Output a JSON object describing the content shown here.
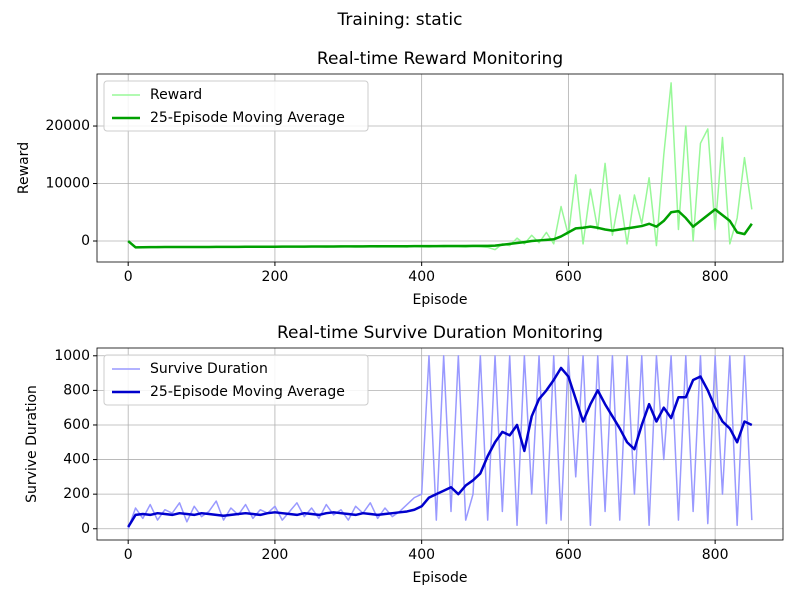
{
  "title": "Training: static",
  "chart_data": [
    {
      "type": "line",
      "title": "Real-time Reward Monitoring",
      "x_label": "Episode",
      "y_label": "Reward",
      "x": [
        0,
        10,
        20,
        30,
        40,
        50,
        60,
        70,
        80,
        90,
        100,
        110,
        120,
        130,
        140,
        150,
        160,
        170,
        180,
        190,
        200,
        210,
        220,
        230,
        240,
        250,
        260,
        270,
        280,
        290,
        300,
        310,
        320,
        330,
        340,
        350,
        360,
        370,
        380,
        390,
        400,
        410,
        420,
        430,
        440,
        450,
        460,
        470,
        480,
        490,
        500,
        510,
        520,
        530,
        540,
        550,
        560,
        570,
        580,
        590,
        600,
        610,
        620,
        630,
        640,
        650,
        660,
        670,
        680,
        690,
        700,
        710,
        720,
        730,
        740,
        750,
        760,
        770,
        780,
        790,
        800,
        810,
        820,
        830,
        840,
        850
      ],
      "series": [
        {
          "name": "Reward",
          "color": "#98f898",
          "width": 1.5,
          "values": [
            0,
            -1050,
            -1000,
            -1100,
            -980,
            -1020,
            -1050,
            -990,
            -1010,
            -1060,
            -1000,
            -1030,
            -980,
            -1040,
            -1000,
            -1020,
            -1070,
            -990,
            -1010,
            -1000,
            -1050,
            -1020,
            -980,
            -1000,
            -1040,
            -1010,
            -990,
            -1060,
            -1000,
            -1020,
            -980,
            -1030,
            -1010,
            -1000,
            -1050,
            -990,
            -1020,
            -1000,
            -1040,
            -900,
            -1000,
            -1050,
            -950,
            -1010,
            -980,
            -1000,
            -1030,
            -950,
            -990,
            -1100,
            -1500,
            -500,
            -800,
            500,
            -500,
            1000,
            -300,
            1500,
            -500,
            6000,
            1000,
            11500,
            -500,
            9000,
            2000,
            13500,
            1000,
            8000,
            -500,
            8000,
            3000,
            11000,
            -800,
            15000,
            27500,
            2000,
            20000,
            0,
            17000,
            19500,
            2000,
            18000,
            -500,
            4000,
            14500,
            5500
          ]
        },
        {
          "name": "25-Episode Moving Average",
          "color": "#00a000",
          "width": 2.5,
          "values": [
            0,
            -1100,
            -1080,
            -1070,
            -1060,
            -1050,
            -1050,
            -1040,
            -1040,
            -1030,
            -1030,
            -1030,
            -1020,
            -1020,
            -1010,
            -1010,
            -1000,
            -1000,
            -1000,
            -990,
            -990,
            -980,
            -980,
            -970,
            -970,
            -960,
            -960,
            -950,
            -950,
            -940,
            -940,
            -930,
            -930,
            -920,
            -920,
            -910,
            -910,
            -900,
            -900,
            -890,
            -890,
            -880,
            -880,
            -870,
            -870,
            -860,
            -860,
            -850,
            -850,
            -840,
            -800,
            -650,
            -500,
            -350,
            -200,
            0,
            100,
            200,
            300,
            800,
            1500,
            2200,
            2300,
            2500,
            2300,
            2000,
            1800,
            2000,
            2200,
            2400,
            2600,
            3000,
            2500,
            3500,
            5000,
            5200,
            4000,
            2500,
            3500,
            4500,
            5500,
            4500,
            3500,
            1500,
            1200,
            3000
          ]
        }
      ],
      "xlim": [
        -42.5,
        892.5
      ],
      "ylim": [
        -3650,
        29050
      ],
      "xticks": [
        0,
        200,
        400,
        600,
        800
      ],
      "yticks": [
        0,
        10000,
        20000
      ],
      "grid": true,
      "legend": "upper-left"
    },
    {
      "type": "line",
      "title": "Real-time Survive Duration Monitoring",
      "x_label": "Episode",
      "y_label": "Survive Duration",
      "x": [
        0,
        10,
        20,
        30,
        40,
        50,
        60,
        70,
        80,
        90,
        100,
        110,
        120,
        130,
        140,
        150,
        160,
        170,
        180,
        190,
        200,
        210,
        220,
        230,
        240,
        250,
        260,
        270,
        280,
        290,
        300,
        310,
        320,
        330,
        340,
        350,
        360,
        370,
        380,
        390,
        400,
        410,
        420,
        430,
        440,
        450,
        460,
        470,
        480,
        490,
        500,
        510,
        520,
        530,
        540,
        550,
        560,
        570,
        580,
        590,
        600,
        610,
        620,
        630,
        640,
        650,
        660,
        670,
        680,
        690,
        700,
        710,
        720,
        730,
        740,
        750,
        760,
        770,
        780,
        790,
        800,
        810,
        820,
        830,
        840,
        850
      ],
      "series": [
        {
          "name": "Survive Duration",
          "color": "#9999ff",
          "width": 1.5,
          "values": [
            0,
            120,
            60,
            140,
            50,
            110,
            90,
            150,
            40,
            130,
            70,
            100,
            160,
            50,
            120,
            80,
            140,
            60,
            110,
            90,
            130,
            50,
            100,
            150,
            70,
            120,
            60,
            140,
            80,
            110,
            50,
            130,
            90,
            150,
            60,
            120,
            70,
            100,
            140,
            180,
            200,
            1000,
            50,
            1000,
            100,
            1000,
            50,
            200,
            1000,
            50,
            1000,
            100,
            1000,
            20,
            1000,
            200,
            1000,
            30,
            1000,
            50,
            1000,
            300,
            1000,
            20,
            1000,
            100,
            1000,
            50,
            1000,
            200,
            1000,
            20,
            1000,
            400,
            1000,
            50,
            1000,
            100,
            1000,
            30,
            1000,
            200,
            1000,
            20,
            1000,
            50
          ]
        },
        {
          "name": "25-Episode Moving Average",
          "color": "#0000cc",
          "width": 2.5,
          "values": [
            10,
            80,
            85,
            80,
            90,
            85,
            80,
            90,
            85,
            80,
            90,
            85,
            80,
            75,
            80,
            85,
            90,
            85,
            80,
            90,
            95,
            90,
            85,
            80,
            90,
            85,
            80,
            90,
            95,
            90,
            85,
            80,
            90,
            85,
            80,
            85,
            90,
            95,
            100,
            110,
            130,
            180,
            200,
            220,
            240,
            200,
            250,
            280,
            320,
            420,
            500,
            560,
            540,
            600,
            450,
            650,
            750,
            800,
            860,
            930,
            880,
            750,
            620,
            720,
            800,
            720,
            650,
            580,
            500,
            460,
            600,
            720,
            620,
            700,
            640,
            760,
            760,
            860,
            880,
            800,
            700,
            620,
            580,
            500,
            620,
            600
          ]
        }
      ],
      "xlim": [
        -42.5,
        892.5
      ],
      "ylim": [
        -65,
        1045
      ],
      "xticks": [
        0,
        200,
        400,
        600,
        800
      ],
      "yticks": [
        0,
        200,
        400,
        600,
        800,
        1000
      ],
      "grid": true,
      "legend": "upper-left"
    }
  ]
}
